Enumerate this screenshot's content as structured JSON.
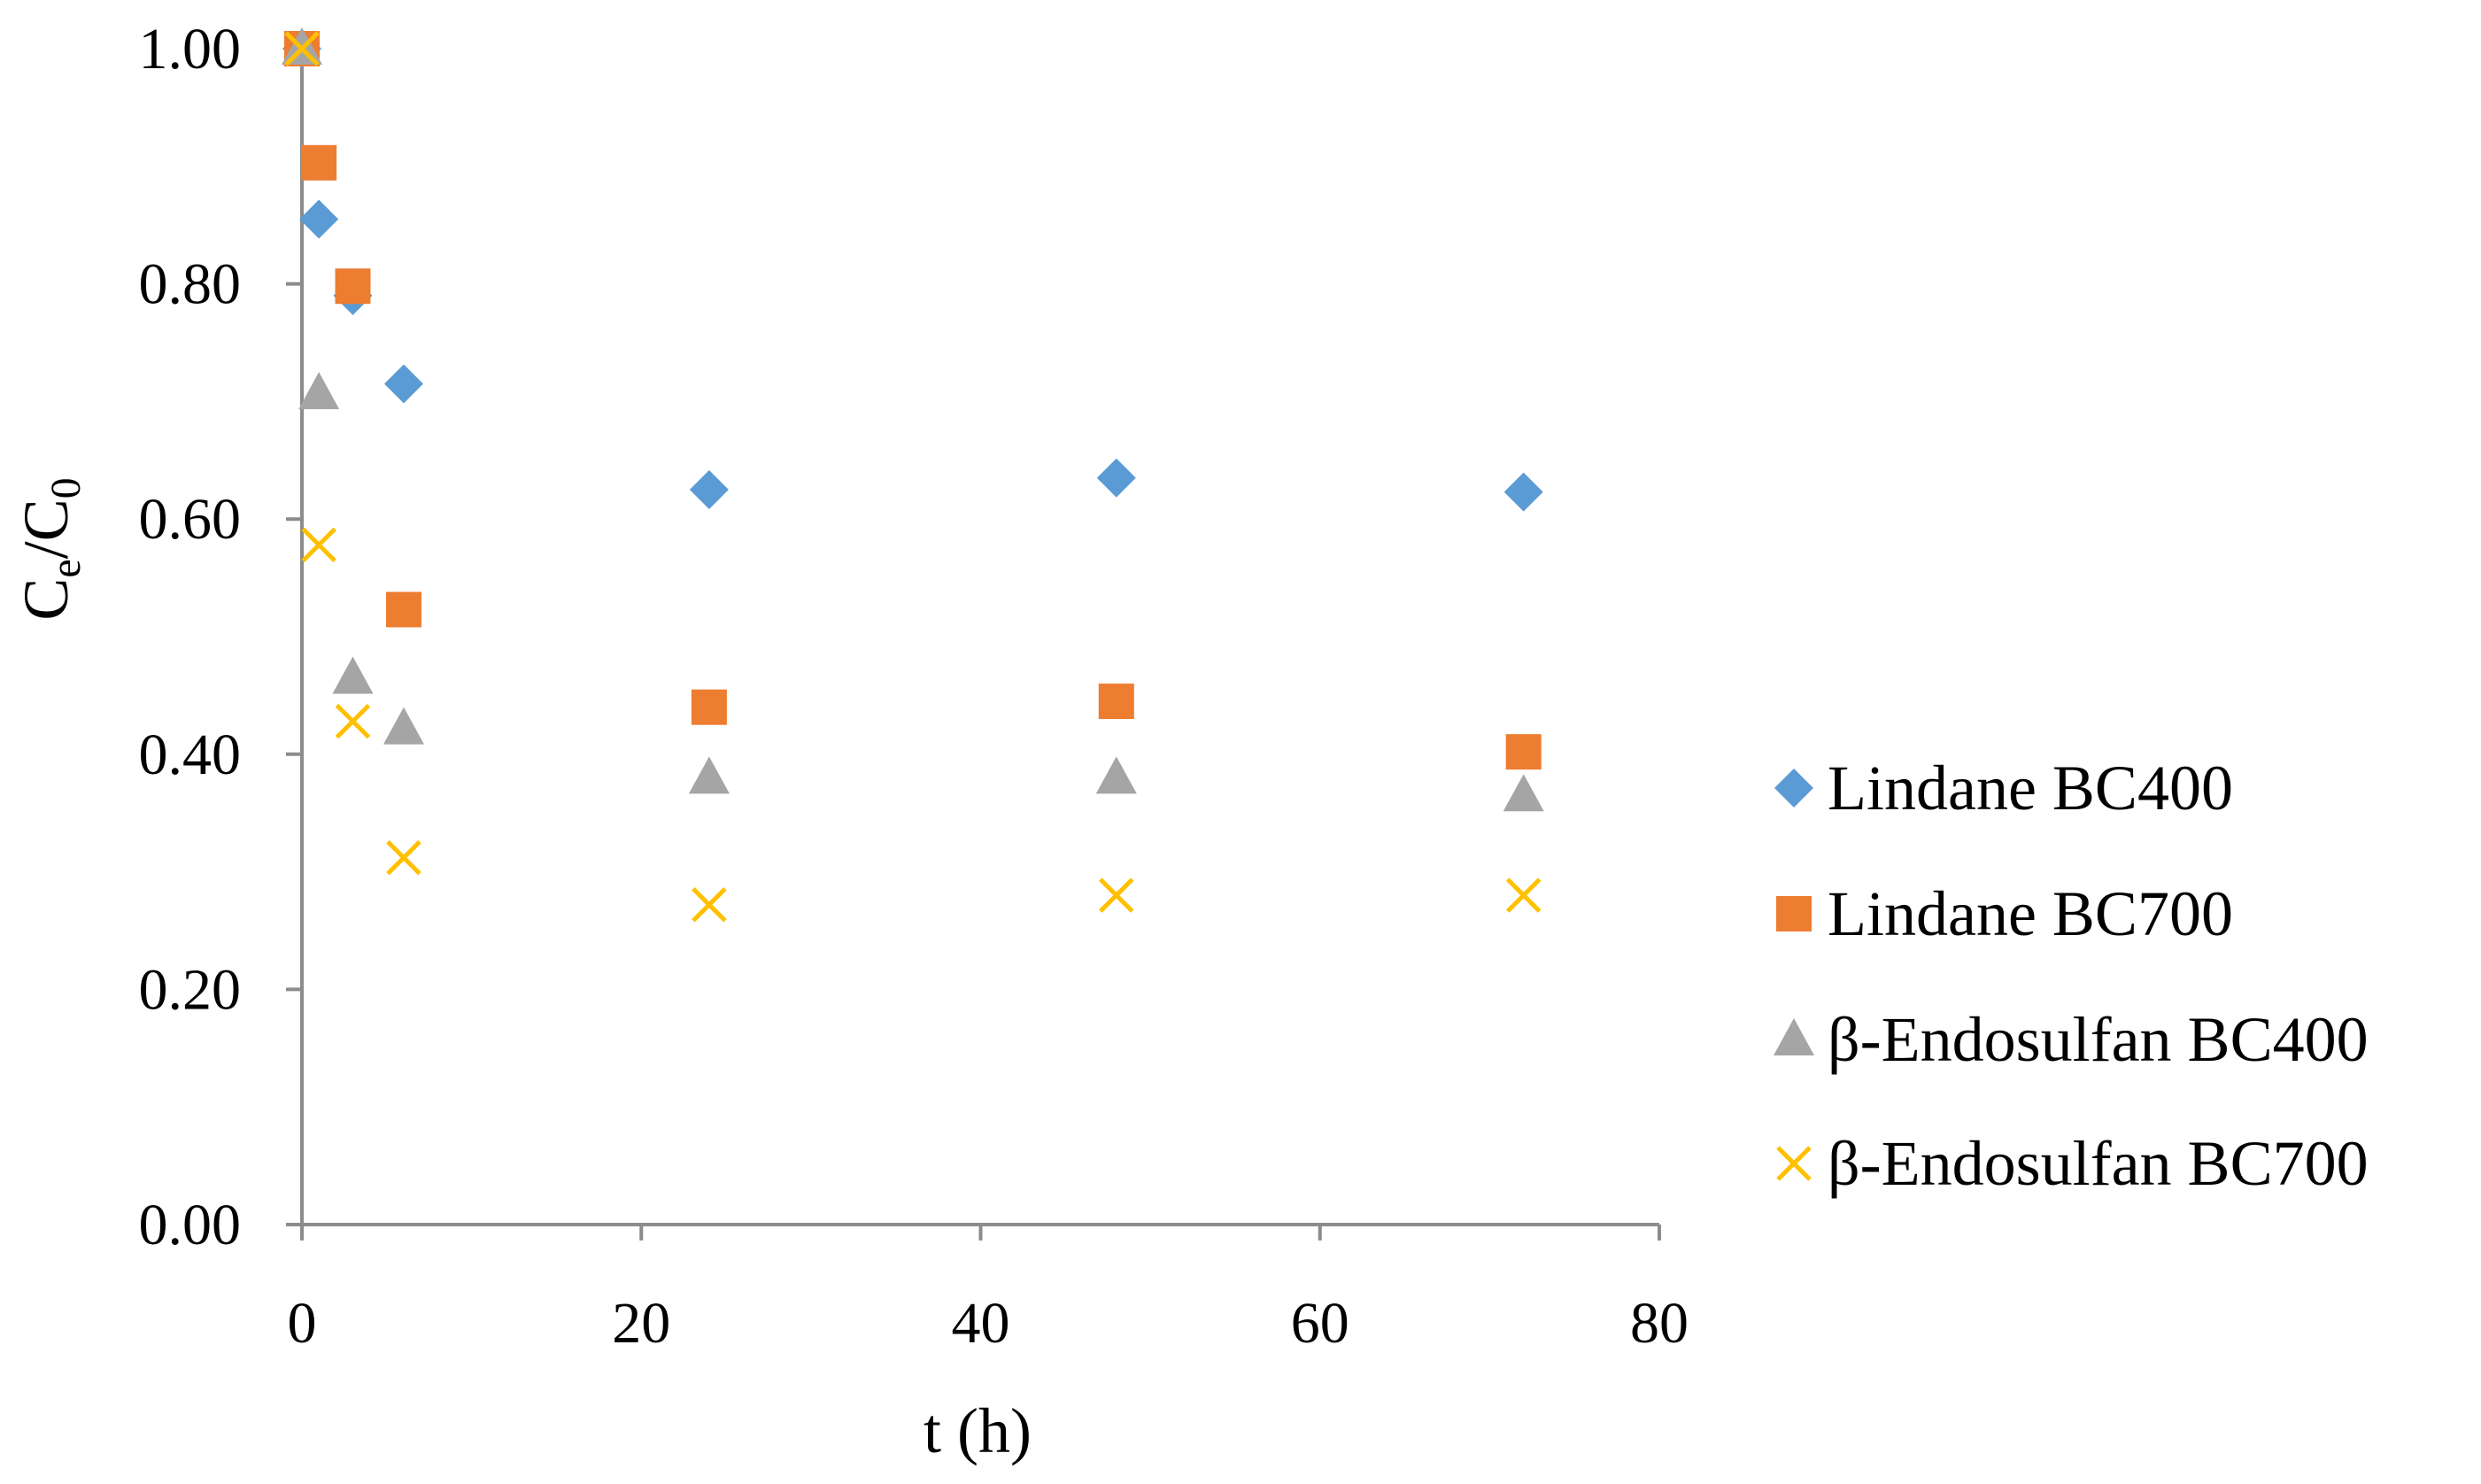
{
  "chart_data": {
    "type": "scatter",
    "title": "",
    "xlabel": "t (h)",
    "ylabel": {
      "main": "C",
      "sub1": "e",
      "slash": "/C",
      "sub2": "0"
    },
    "xlim": [
      0,
      80
    ],
    "ylim": [
      0,
      1.0
    ],
    "x_ticks": [
      "0",
      "20",
      "40",
      "60",
      "80"
    ],
    "y_ticks": [
      "0.00",
      "0.20",
      "0.40",
      "0.60",
      "0.80",
      "1.00"
    ],
    "grid": false,
    "legend_position": "right",
    "series": [
      {
        "name": "Lindane BC400",
        "marker": "diamond",
        "color": "#5B9BD5",
        "x": [
          0,
          1,
          3,
          6,
          24,
          48,
          72
        ],
        "y": [
          1.0,
          0.855,
          0.79,
          0.715,
          0.625,
          0.635,
          0.623
        ]
      },
      {
        "name": "Lindane BC700",
        "marker": "square",
        "color": "#ED7D31",
        "x": [
          0,
          1,
          3,
          6,
          24,
          48,
          72
        ],
        "y": [
          1.0,
          0.903,
          0.798,
          0.523,
          0.44,
          0.445,
          0.402
        ]
      },
      {
        "name": "β-Endosulfan BC400",
        "marker": "triangle",
        "color": "#A5A5A5",
        "x": [
          0,
          1,
          3,
          6,
          24,
          48,
          72
        ],
        "y": [
          1.0,
          0.707,
          0.465,
          0.422,
          0.38,
          0.38,
          0.365
        ]
      },
      {
        "name": "β-Endosulfan BC700",
        "marker": "x",
        "color": "#FFC000",
        "x": [
          0,
          1,
          3,
          6,
          24,
          48,
          72
        ],
        "y": [
          1.0,
          0.578,
          0.428,
          0.312,
          0.272,
          0.28,
          0.28
        ]
      }
    ]
  }
}
